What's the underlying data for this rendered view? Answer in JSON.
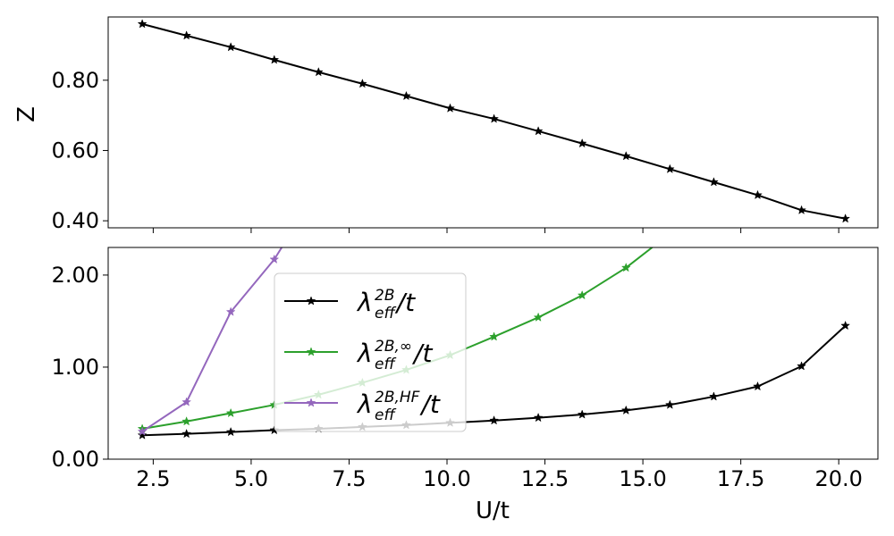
{
  "chart_data": [
    {
      "type": "line",
      "ylabel": "Z",
      "xlabel": "",
      "xlim": [
        1.35,
        21.0
      ],
      "ylim": [
        0.38,
        0.98
      ],
      "yticks": [
        0.4,
        0.6,
        0.8
      ],
      "ytick_labels": [
        "0.40",
        "0.60",
        "0.80"
      ],
      "xticks": [
        2.5,
        5.0,
        7.5,
        10.0,
        12.5,
        15.0,
        17.5,
        20.0
      ],
      "show_xtick_labels": false,
      "grid": false,
      "series": [
        {
          "name": "",
          "color": "#000000",
          "marker": "star",
          "x": [
            2.22,
            3.35,
            4.48,
            5.59,
            6.72,
            7.84,
            8.96,
            10.08,
            11.2,
            12.33,
            13.45,
            14.57,
            15.69,
            16.81,
            17.93,
            19.05,
            20.17
          ],
          "y": [
            0.96,
            0.927,
            0.894,
            0.858,
            0.823,
            0.79,
            0.755,
            0.72,
            0.69,
            0.655,
            0.62,
            0.584,
            0.547,
            0.51,
            0.473,
            0.43,
            0.406
          ]
        }
      ]
    },
    {
      "type": "line",
      "xlabel": "U/t",
      "ylabel": "",
      "xlim": [
        1.35,
        21.0
      ],
      "ylim": [
        0.0,
        2.3
      ],
      "yticks": [
        0.0,
        1.0,
        2.0
      ],
      "ytick_labels": [
        "0.00",
        "1.00",
        "2.00"
      ],
      "xticks": [
        2.5,
        5.0,
        7.5,
        10.0,
        12.5,
        15.0,
        17.5,
        20.0
      ],
      "xtick_labels": [
        "2.5",
        "5.0",
        "7.5",
        "10.0",
        "12.5",
        "15.0",
        "17.5",
        "20.0"
      ],
      "grid": false,
      "legend_placement": "center-left",
      "legend": [
        {
          "base": "λ",
          "sup": "2B",
          "sub": "eff",
          "tail": "/t",
          "color": "#000000"
        },
        {
          "base": "λ",
          "sup": "2B,∞",
          "sub": "eff",
          "tail": "/t",
          "color": "#2ca02c"
        },
        {
          "base": "λ",
          "sup": "2B,HF",
          "sub": "eff",
          "tail": "/t",
          "color": "#9467bd"
        }
      ],
      "series": [
        {
          "color": "#000000",
          "marker": "star",
          "x": [
            2.22,
            3.35,
            4.48,
            5.59,
            6.72,
            7.84,
            8.96,
            10.08,
            11.2,
            12.33,
            13.45,
            14.57,
            15.69,
            16.81,
            17.93,
            19.05,
            20.17
          ],
          "y": [
            0.26,
            0.275,
            0.295,
            0.315,
            0.33,
            0.35,
            0.37,
            0.395,
            0.42,
            0.45,
            0.485,
            0.53,
            0.59,
            0.68,
            0.79,
            1.01,
            1.45
          ]
        },
        {
          "color": "#2ca02c",
          "marker": "star",
          "x": [
            2.22,
            3.35,
            4.48,
            5.59,
            6.72,
            7.84,
            8.96,
            10.08,
            11.2,
            12.33,
            13.45,
            14.57,
            15.69
          ],
          "y": [
            0.33,
            0.41,
            0.5,
            0.59,
            0.7,
            0.83,
            0.97,
            1.13,
            1.33,
            1.54,
            1.78,
            2.08,
            2.45
          ]
        },
        {
          "color": "#9467bd",
          "marker": "star",
          "x": [
            2.22,
            3.35,
            4.48,
            5.59,
            6.0
          ],
          "y": [
            0.3,
            0.62,
            1.6,
            2.17,
            2.45
          ]
        }
      ]
    }
  ]
}
